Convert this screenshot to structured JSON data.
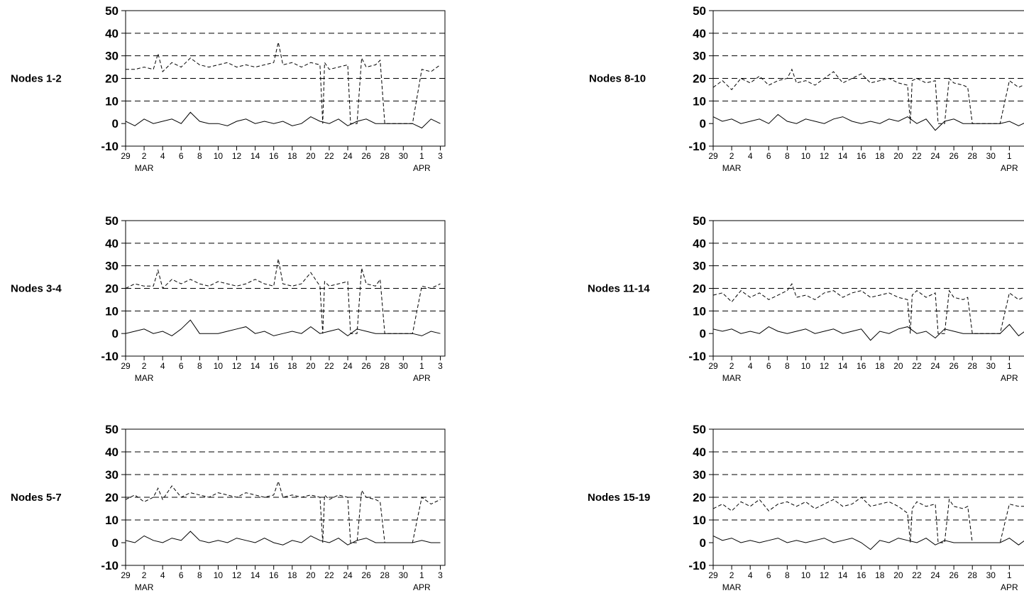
{
  "chart_data": [
    {
      "type": "line",
      "panel_label": "Nodes  1-2",
      "ylim": [
        -10,
        50
      ],
      "y_ticks": [
        "50",
        "40",
        "30",
        "20",
        "10",
        "0",
        "-10"
      ],
      "x_tick_labels": [
        "29",
        "2",
        "4",
        "6",
        "8",
        "10",
        "12",
        "14",
        "16",
        "18",
        "20",
        "22",
        "24",
        "26",
        "28",
        "30",
        "1",
        "3"
      ],
      "month_labels": [
        "MAR",
        "APR"
      ],
      "grid": "dashed horizontal at 10, 20, 30, 40",
      "series": [
        {
          "style": "dashed",
          "x": [
            0,
            1,
            2,
            3,
            3.5,
            4,
            5,
            6,
            7,
            8,
            9,
            10,
            11,
            12,
            13,
            14,
            15,
            16,
            16.5,
            17,
            18,
            19,
            20,
            21,
            21.3,
            21.5,
            22,
            23,
            24,
            24.3,
            25,
            25.5,
            26,
            27,
            27.5,
            28,
            29,
            30,
            31,
            32,
            33,
            34
          ],
          "y": [
            24,
            24,
            25,
            24,
            31,
            23,
            27,
            25,
            29,
            26,
            25,
            26,
            27,
            25,
            26,
            25,
            26,
            27,
            36,
            26,
            27,
            25,
            27,
            26,
            0,
            27,
            24,
            25,
            26,
            0,
            0,
            29,
            25,
            26,
            28,
            0,
            0,
            0,
            0,
            24,
            23,
            26
          ]
        },
        {
          "style": "solid",
          "x": [
            0,
            1,
            2,
            3,
            4,
            5,
            6,
            7,
            8,
            9,
            10,
            11,
            12,
            13,
            14,
            15,
            16,
            17,
            18,
            19,
            20,
            21,
            22,
            23,
            24,
            25,
            26,
            27,
            28,
            29,
            30,
            31,
            32,
            33,
            34
          ],
          "y": [
            1,
            -1,
            2,
            0,
            1,
            2,
            0,
            5,
            1,
            0,
            0,
            -1,
            1,
            2,
            0,
            1,
            0,
            1,
            -1,
            0,
            3,
            1,
            0,
            2,
            -1,
            1,
            2,
            0,
            0,
            0,
            0,
            0,
            -2,
            2,
            0
          ]
        }
      ]
    },
    {
      "type": "line",
      "panel_label": "Nodes  3-4",
      "ylim": [
        -10,
        50
      ],
      "y_ticks": [
        "50",
        "40",
        "30",
        "20",
        "10",
        "0",
        "-10"
      ],
      "x_tick_labels": [
        "29",
        "2",
        "4",
        "6",
        "8",
        "10",
        "12",
        "14",
        "16",
        "18",
        "20",
        "22",
        "24",
        "26",
        "28",
        "30",
        "1",
        "3"
      ],
      "month_labels": [
        "MAR",
        "APR"
      ],
      "grid": "dashed horizontal at 10, 20, 30, 40",
      "series": [
        {
          "style": "dashed",
          "x": [
            0,
            1,
            2,
            3,
            3.5,
            4,
            5,
            6,
            7,
            8,
            9,
            10,
            11,
            12,
            13,
            14,
            15,
            16,
            16.5,
            17,
            18,
            19,
            20,
            21,
            21.3,
            21.5,
            22,
            23,
            24,
            24.3,
            25,
            25.5,
            26,
            27,
            27.5,
            28,
            29,
            30,
            31,
            32,
            33,
            34
          ],
          "y": [
            20,
            22,
            21,
            21,
            28,
            20,
            24,
            22,
            24,
            22,
            21,
            23,
            22,
            21,
            22,
            24,
            22,
            21,
            33,
            22,
            21,
            22,
            27,
            21,
            0,
            23,
            21,
            22,
            23,
            0,
            0,
            29,
            22,
            21,
            24,
            0,
            0,
            0,
            0,
            21,
            20,
            22
          ]
        },
        {
          "style": "solid",
          "x": [
            0,
            1,
            2,
            3,
            4,
            5,
            6,
            7,
            8,
            9,
            10,
            11,
            12,
            13,
            14,
            15,
            16,
            17,
            18,
            19,
            20,
            21,
            22,
            23,
            24,
            25,
            26,
            27,
            28,
            29,
            30,
            31,
            32,
            33,
            34
          ],
          "y": [
            0,
            1,
            2,
            0,
            1,
            -1,
            2,
            6,
            0,
            0,
            0,
            1,
            2,
            3,
            0,
            1,
            -1,
            0,
            1,
            0,
            3,
            0,
            1,
            2,
            -1,
            2,
            1,
            0,
            0,
            0,
            0,
            0,
            -1,
            1,
            0
          ]
        }
      ]
    },
    {
      "type": "line",
      "panel_label": "Nodes  5-7",
      "ylim": [
        -10,
        50
      ],
      "y_ticks": [
        "50",
        "40",
        "30",
        "20",
        "10",
        "0",
        "-10"
      ],
      "x_tick_labels": [
        "29",
        "2",
        "4",
        "6",
        "8",
        "10",
        "12",
        "14",
        "16",
        "18",
        "20",
        "22",
        "24",
        "26",
        "28",
        "30",
        "1",
        "3"
      ],
      "month_labels": [
        "MAR",
        "APR"
      ],
      "grid": "dashed horizontal at 10, 20, 30, 40",
      "series": [
        {
          "style": "dashed",
          "x": [
            0,
            1,
            2,
            3,
            3.5,
            4,
            5,
            6,
            7,
            8,
            9,
            10,
            11,
            12,
            13,
            14,
            15,
            16,
            16.5,
            17,
            18,
            19,
            20,
            21,
            21.3,
            21.5,
            22,
            23,
            24,
            24.3,
            25,
            25.5,
            26,
            27,
            27.5,
            28,
            29,
            30,
            31,
            32,
            33,
            34
          ],
          "y": [
            19,
            21,
            18,
            20,
            24,
            19,
            25,
            20,
            22,
            21,
            20,
            22,
            21,
            20,
            22,
            21,
            20,
            21,
            27,
            20,
            21,
            20,
            21,
            20,
            0,
            21,
            19,
            21,
            20,
            0,
            0,
            23,
            20,
            19,
            18,
            0,
            0,
            0,
            0,
            20,
            17,
            19
          ]
        },
        {
          "style": "solid",
          "x": [
            0,
            1,
            2,
            3,
            4,
            5,
            6,
            7,
            8,
            9,
            10,
            11,
            12,
            13,
            14,
            15,
            16,
            17,
            18,
            19,
            20,
            21,
            22,
            23,
            24,
            25,
            26,
            27,
            28,
            29,
            30,
            31,
            32,
            33,
            34
          ],
          "y": [
            1,
            0,
            3,
            1,
            0,
            2,
            1,
            5,
            1,
            0,
            1,
            0,
            2,
            1,
            0,
            2,
            0,
            -1,
            1,
            0,
            3,
            1,
            0,
            2,
            -1,
            1,
            2,
            0,
            0,
            0,
            0,
            0,
            1,
            0,
            0
          ]
        }
      ]
    },
    {
      "type": "line",
      "panel_label": "Nodes  8-10",
      "ylim": [
        -10,
        50
      ],
      "y_ticks": [
        "50",
        "40",
        "30",
        "20",
        "10",
        "0",
        "-10"
      ],
      "x_tick_labels": [
        "29",
        "2",
        "4",
        "6",
        "8",
        "10",
        "12",
        "14",
        "16",
        "18",
        "20",
        "22",
        "24",
        "26",
        "28",
        "30",
        "1",
        "3"
      ],
      "month_labels": [
        "MAR",
        "APR"
      ],
      "grid": "dashed horizontal at 10, 20, 30, 40",
      "series": [
        {
          "style": "dashed",
          "x": [
            0,
            1,
            2,
            3,
            4,
            5,
            6,
            7,
            8,
            8.5,
            9,
            10,
            11,
            12,
            13,
            14,
            15,
            16,
            17,
            18,
            19,
            20,
            21,
            21.3,
            21.5,
            22,
            23,
            24,
            24.3,
            25,
            25.5,
            26,
            27,
            27.5,
            28,
            29,
            30,
            31,
            32,
            33,
            34
          ],
          "y": [
            16,
            19,
            15,
            20,
            18,
            21,
            17,
            19,
            20,
            24,
            18,
            19,
            17,
            20,
            23,
            18,
            20,
            22,
            18,
            19,
            20,
            18,
            17,
            0,
            19,
            20,
            18,
            19,
            0,
            0,
            20,
            18,
            17,
            16,
            0,
            0,
            0,
            0,
            19,
            16,
            18
          ]
        },
        {
          "style": "solid",
          "x": [
            0,
            1,
            2,
            3,
            4,
            5,
            6,
            7,
            8,
            9,
            10,
            11,
            12,
            13,
            14,
            15,
            16,
            17,
            18,
            19,
            20,
            21,
            22,
            23,
            24,
            25,
            26,
            27,
            28,
            29,
            30,
            31,
            32,
            33,
            34
          ],
          "y": [
            3,
            1,
            2,
            0,
            1,
            2,
            0,
            4,
            1,
            0,
            2,
            1,
            0,
            2,
            3,
            1,
            0,
            1,
            0,
            2,
            1,
            3,
            0,
            2,
            -3,
            1,
            2,
            0,
            0,
            0,
            0,
            0,
            1,
            -1,
            1
          ]
        }
      ]
    },
    {
      "type": "line",
      "panel_label": "Nodes 11-14",
      "ylim": [
        -10,
        50
      ],
      "y_ticks": [
        "50",
        "40",
        "30",
        "20",
        "10",
        "0",
        "-10"
      ],
      "x_tick_labels": [
        "29",
        "2",
        "4",
        "6",
        "8",
        "10",
        "12",
        "14",
        "16",
        "18",
        "20",
        "22",
        "24",
        "26",
        "28",
        "30",
        "1",
        "3"
      ],
      "month_labels": [
        "MAR",
        "APR"
      ],
      "grid": "dashed horizontal at 10, 20, 30, 40",
      "series": [
        {
          "style": "dashed",
          "x": [
            0,
            1,
            2,
            3,
            4,
            5,
            6,
            7,
            8,
            8.5,
            9,
            10,
            11,
            12,
            13,
            14,
            15,
            16,
            17,
            18,
            19,
            20,
            21,
            21.3,
            21.5,
            22,
            23,
            24,
            24.3,
            25,
            25.5,
            26,
            27,
            27.5,
            28,
            29,
            30,
            31,
            32,
            33,
            34
          ],
          "y": [
            17,
            18,
            14,
            19,
            16,
            18,
            15,
            17,
            19,
            22,
            16,
            17,
            15,
            18,
            19,
            16,
            18,
            19,
            16,
            17,
            18,
            16,
            15,
            0,
            17,
            19,
            16,
            18,
            0,
            0,
            19,
            16,
            15,
            16,
            0,
            0,
            0,
            0,
            18,
            15,
            17
          ]
        },
        {
          "style": "solid",
          "x": [
            0,
            1,
            2,
            3,
            4,
            5,
            6,
            7,
            8,
            9,
            10,
            11,
            12,
            13,
            14,
            15,
            16,
            17,
            18,
            19,
            20,
            21,
            22,
            23,
            24,
            25,
            26,
            27,
            28,
            29,
            30,
            31,
            32,
            33,
            34
          ],
          "y": [
            2,
            1,
            2,
            0,
            1,
            0,
            3,
            1,
            0,
            1,
            2,
            0,
            1,
            2,
            0,
            1,
            2,
            -3,
            1,
            0,
            2,
            3,
            0,
            1,
            -2,
            2,
            1,
            0,
            0,
            0,
            0,
            0,
            4,
            -1,
            2
          ]
        }
      ]
    },
    {
      "type": "line",
      "panel_label": "Nodes 15-19",
      "ylim": [
        -10,
        50
      ],
      "y_ticks": [
        "50",
        "40",
        "30",
        "20",
        "10",
        "0",
        "-10"
      ],
      "x_tick_labels": [
        "29",
        "2",
        "4",
        "6",
        "8",
        "10",
        "12",
        "14",
        "16",
        "18",
        "20",
        "22",
        "24",
        "26",
        "28",
        "30",
        "1",
        "3"
      ],
      "month_labels": [
        "MAR",
        "APR"
      ],
      "grid": "dashed horizontal at 10, 20, 30, 40",
      "series": [
        {
          "style": "dashed",
          "x": [
            0,
            1,
            2,
            3,
            4,
            5,
            6,
            7,
            8,
            9,
            10,
            11,
            12,
            13,
            14,
            15,
            16,
            17,
            18,
            19,
            20,
            21,
            21.3,
            21.5,
            22,
            23,
            24,
            24.3,
            25,
            25.5,
            26,
            27,
            27.5,
            28,
            29,
            30,
            31,
            32,
            33,
            34
          ],
          "y": [
            15,
            17,
            14,
            18,
            16,
            19,
            14,
            17,
            18,
            16,
            18,
            15,
            17,
            19,
            16,
            17,
            20,
            16,
            17,
            18,
            16,
            13,
            0,
            15,
            18,
            16,
            17,
            0,
            0,
            19,
            16,
            15,
            16,
            0,
            0,
            0,
            0,
            17,
            16,
            16
          ]
        },
        {
          "style": "solid",
          "x": [
            0,
            1,
            2,
            3,
            4,
            5,
            6,
            7,
            8,
            9,
            10,
            11,
            12,
            13,
            14,
            15,
            16,
            17,
            18,
            19,
            20,
            21,
            22,
            23,
            24,
            25,
            26,
            27,
            28,
            29,
            30,
            31,
            32,
            33,
            34
          ],
          "y": [
            3,
            1,
            2,
            0,
            1,
            0,
            1,
            2,
            0,
            1,
            0,
            1,
            2,
            0,
            1,
            2,
            0,
            -3,
            1,
            0,
            2,
            1,
            0,
            2,
            -1,
            1,
            0,
            0,
            0,
            0,
            0,
            0,
            2,
            -1,
            2
          ]
        }
      ]
    }
  ]
}
